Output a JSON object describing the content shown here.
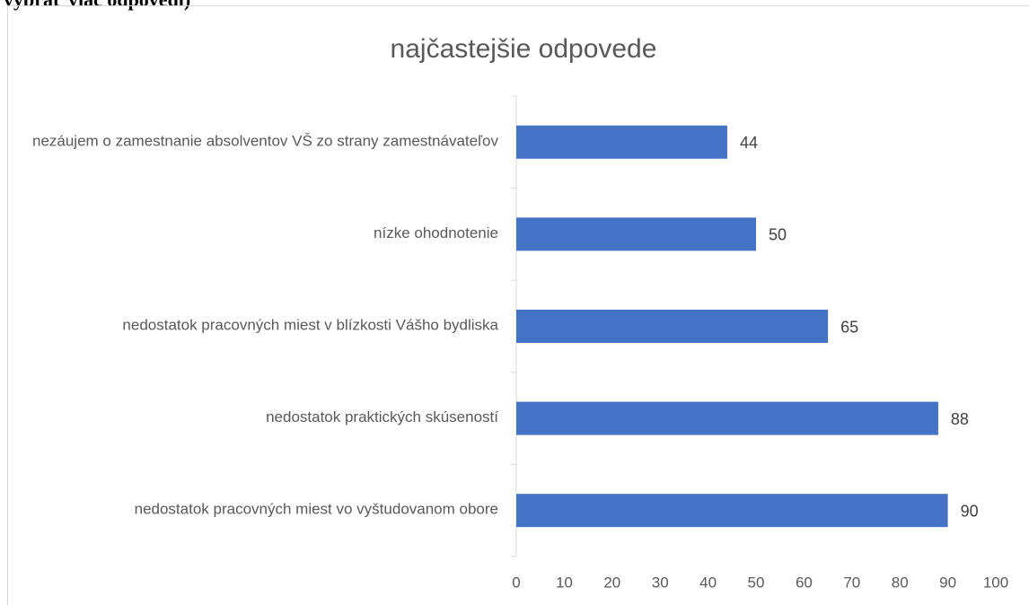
{
  "caption": "vybrať viac odpovedí)",
  "chart_data": {
    "type": "barh",
    "title": "najčastejšie odpovede",
    "categories": [
      "nezáujem o zamestnanie absolventov VŠ zo strany zamestnávateľov",
      "nízke ohodnotenie",
      "nedostatok pracovných miest v blízkosti Vášho bydliska",
      "nedostatok praktických skúseností",
      "nedostatok pracovných miest vo vyštudovanom obore"
    ],
    "values": [
      44,
      50,
      65,
      88,
      90
    ],
    "color": "#4472c4",
    "xlim": [
      0,
      100
    ],
    "xticks": [
      0,
      10,
      20,
      30,
      40,
      50,
      60,
      70,
      80,
      90,
      100
    ],
    "grid": false,
    "data_labels": true
  }
}
